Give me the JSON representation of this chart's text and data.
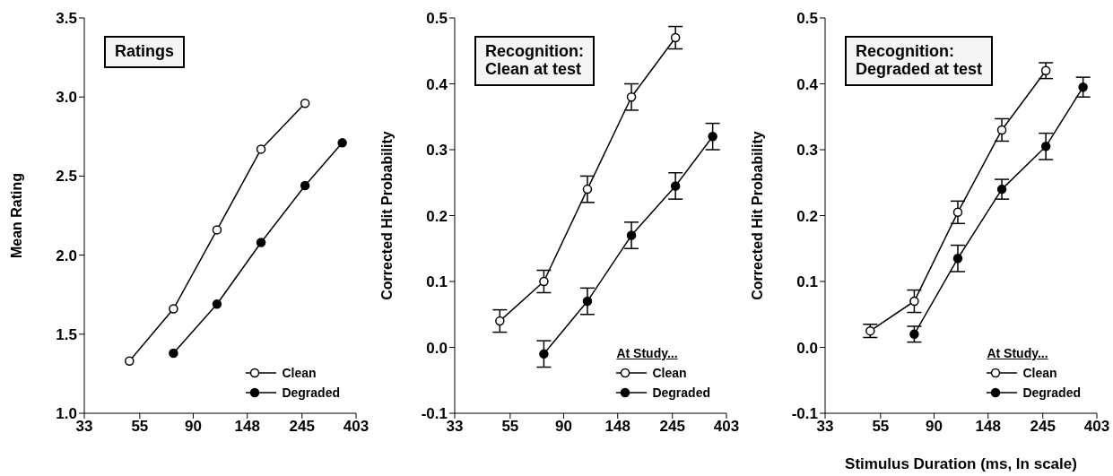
{
  "chart_data": [
    {
      "type": "line",
      "title": "Ratings",
      "ylabel": "Mean Rating",
      "log": "x",
      "xlim": [
        33,
        403
      ],
      "xticks": [
        33,
        55,
        90,
        148,
        245,
        403
      ],
      "ylim": [
        1,
        3.5
      ],
      "yticks": [
        {
          "value": 1,
          "label": "1.0"
        },
        1.5,
        {
          "value": 2,
          "label": "2.0"
        },
        2.5,
        {
          "value": 3,
          "label": "3.0"
        },
        3.5
      ],
      "grid": false,
      "legend": "bottom right",
      "marker": "circle",
      "line_style": "solid",
      "series": [
        {
          "name": "Clean",
          "color": "#000000",
          "x": [
            50,
            75,
            112,
            168,
            252
          ],
          "values": [
            1.33,
            1.66,
            2.16,
            2.67,
            2.96
          ]
        },
        {
          "name": "Degraded",
          "color": "#000000",
          "x": [
            75,
            112,
            168,
            252,
            355
          ],
          "values": [
            1.38,
            1.69,
            2.08,
            2.44,
            2.71
          ]
        }
      ]
    },
    {
      "type": "line",
      "title": "Recognition:\nClean at test",
      "ylabel": "Corrected Hit Probability",
      "legend_title": "At Study...",
      "log": "x",
      "xlim": [
        33,
        403
      ],
      "xticks": [
        33,
        55,
        90,
        148,
        245,
        403
      ],
      "ylim": [
        -0.1,
        0.5
      ],
      "yticks": [
        -0.1,
        {
          "value": 0,
          "label": "0.0"
        },
        0.1,
        0.2,
        0.3,
        0.4,
        0.5
      ],
      "grid": false,
      "legend": "bottom right",
      "marker": "circle",
      "line_style": "solid",
      "series": [
        {
          "name": "Clean",
          "color": "#000000",
          "x": [
            50,
            75,
            112,
            168,
            252
          ],
          "values": [
            0.04,
            0.1,
            0.24,
            0.38,
            0.47
          ],
          "errors": [
            0.017,
            0.017,
            0.02,
            0.02,
            0.017
          ]
        },
        {
          "name": "Degraded",
          "color": "#000000",
          "x": [
            75,
            112,
            168,
            252,
            355
          ],
          "values": [
            -0.01,
            0.07,
            0.17,
            0.245,
            0.32
          ],
          "errors": [
            0.02,
            0.02,
            0.02,
            0.02,
            0.02
          ]
        }
      ]
    },
    {
      "type": "line",
      "title": "Recognition:\nDegraded at test",
      "ylabel": "Corrected Hit Probability",
      "xlabel": "Stimulus Duration (ms, ln scale)",
      "legend_title": "At Study...",
      "log": "x",
      "xlim": [
        33,
        403
      ],
      "xticks": [
        33,
        55,
        90,
        148,
        245,
        403
      ],
      "ylim": [
        -0.1,
        0.5
      ],
      "yticks": [
        -0.1,
        {
          "value": 0,
          "label": "0.0"
        },
        0.1,
        0.2,
        0.3,
        0.4,
        0.5
      ],
      "grid": false,
      "legend": "bottom right",
      "marker": "circle",
      "line_style": "solid",
      "series": [
        {
          "name": "Clean",
          "color": "#000000",
          "x": [
            50,
            75,
            112,
            168,
            252
          ],
          "values": [
            0.025,
            0.07,
            0.205,
            0.33,
            0.42
          ],
          "errors": [
            0.01,
            0.017,
            0.017,
            0.017,
            0.012
          ]
        },
        {
          "name": "Degraded",
          "color": "#000000",
          "x": [
            75,
            112,
            168,
            252,
            355
          ],
          "values": [
            0.02,
            0.135,
            0.24,
            0.305,
            0.395
          ],
          "errors": [
            0.012,
            0.02,
            0.015,
            0.02,
            0.015
          ]
        }
      ]
    }
  ]
}
